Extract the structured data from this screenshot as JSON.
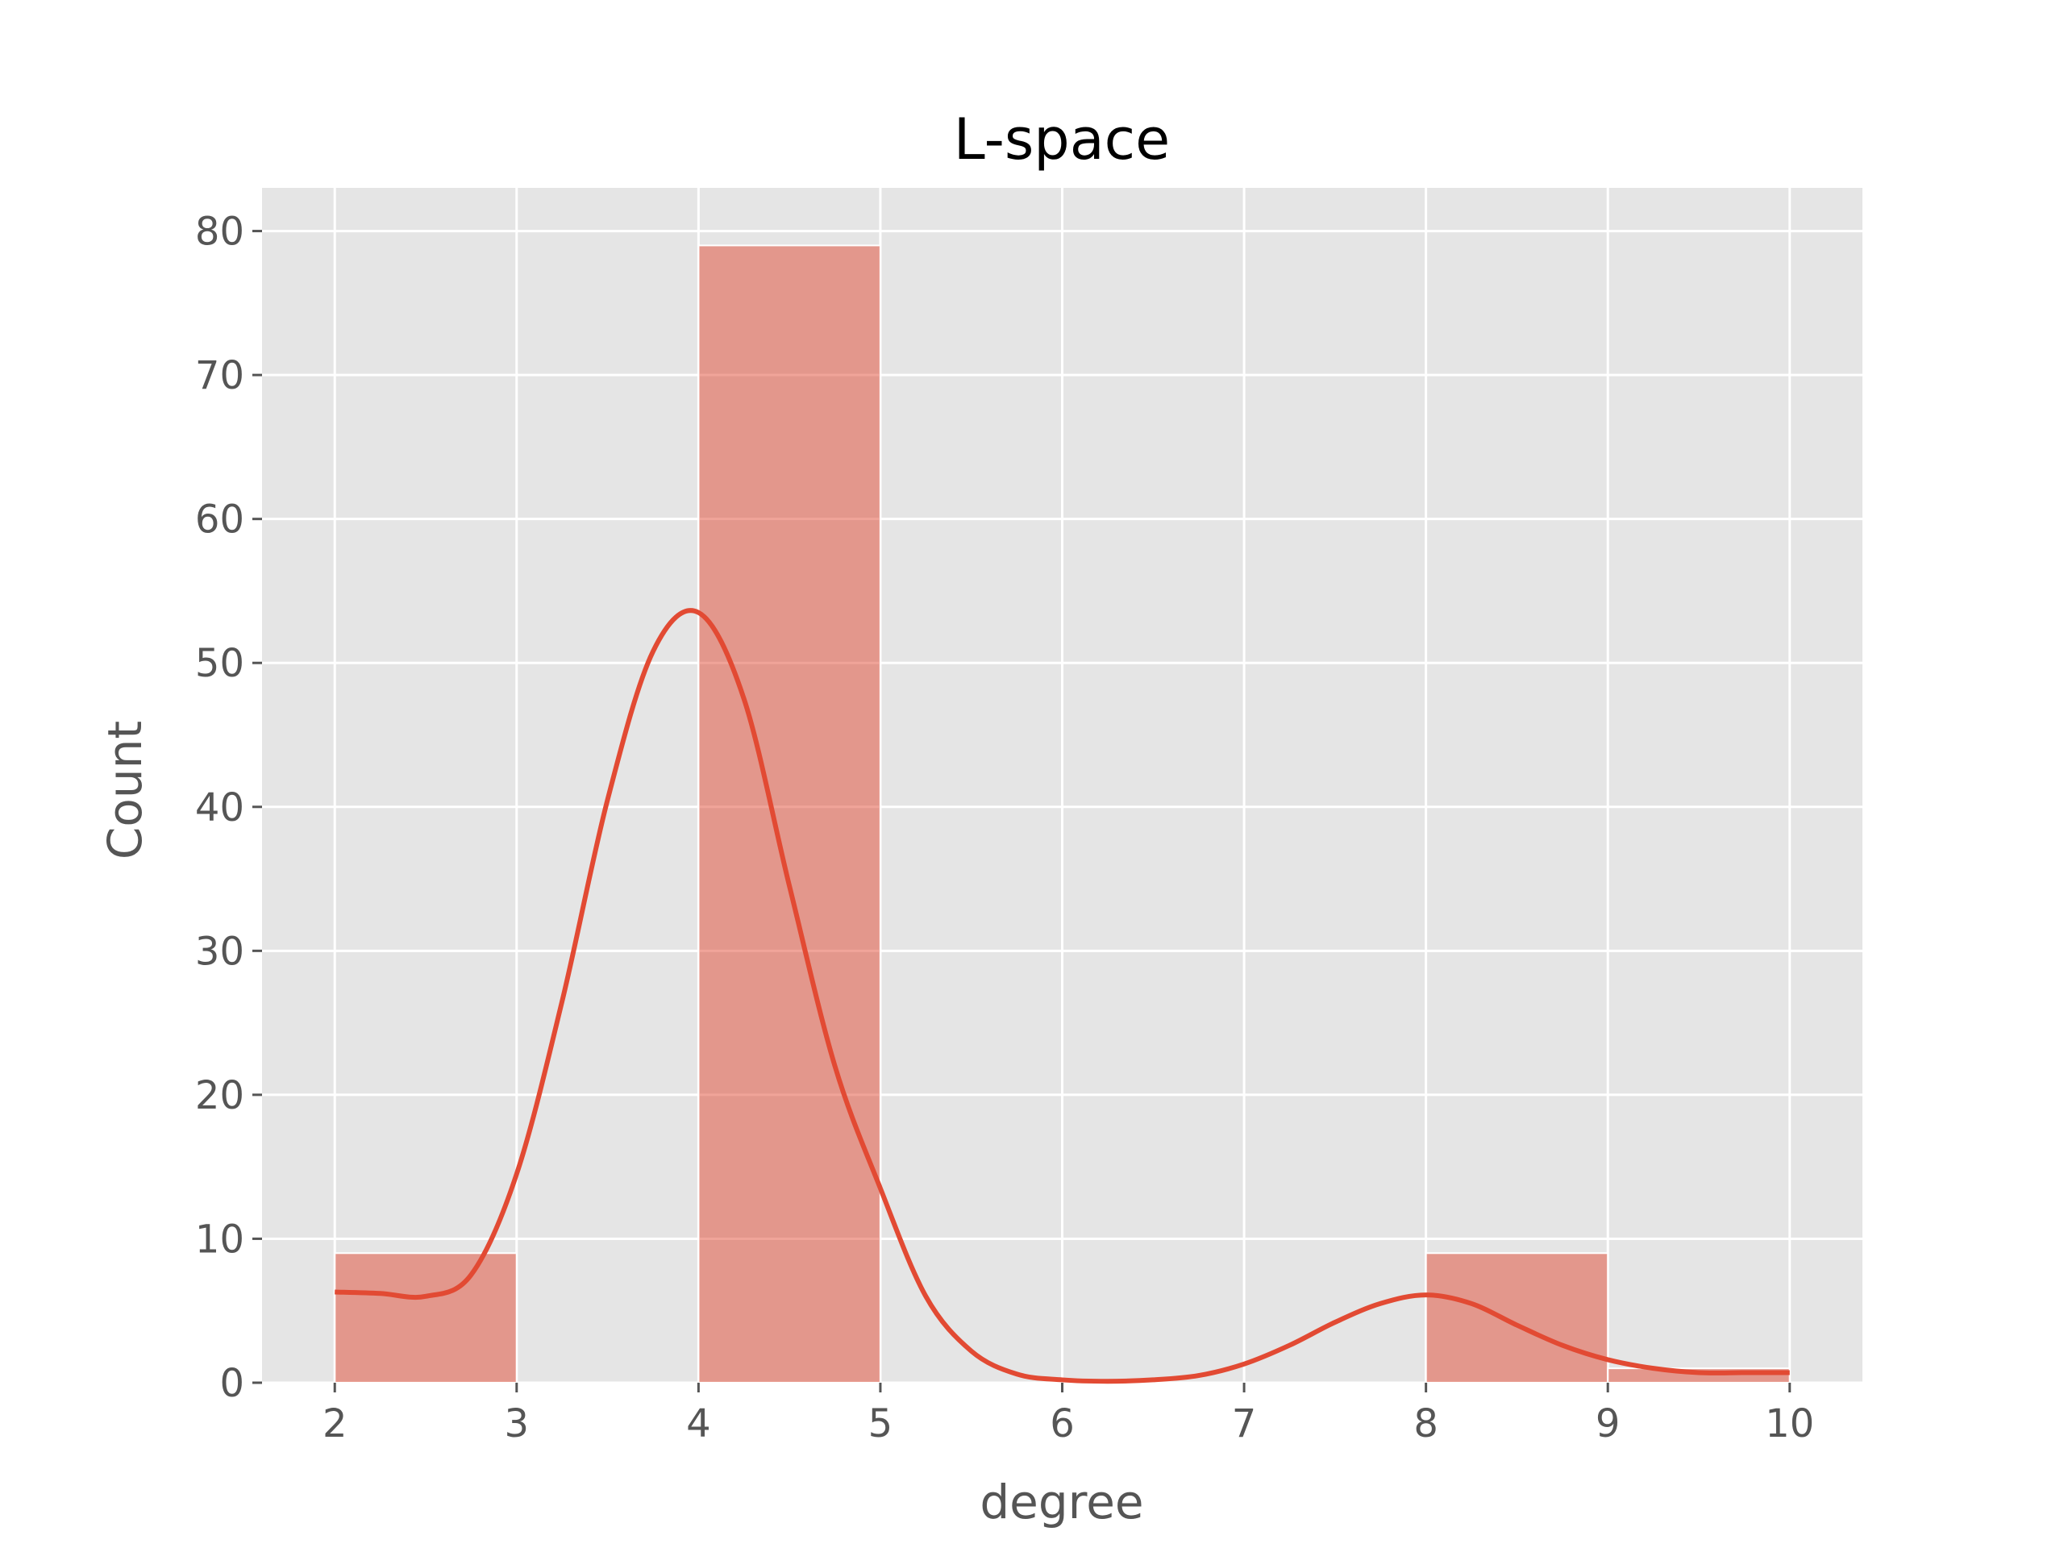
{
  "chart_data": {
    "type": "bar",
    "title": "L-space",
    "xlabel": "degree",
    "ylabel": "Count",
    "xlim": [
      1.6,
      10.4
    ],
    "ylim": [
      0,
      83
    ],
    "xticks": [
      "2",
      "3",
      "4",
      "5",
      "6",
      "7",
      "8",
      "9",
      "10"
    ],
    "yticks": [
      "0",
      "10",
      "20",
      "30",
      "40",
      "50",
      "60",
      "70",
      "80"
    ],
    "grid": true,
    "background": "#E5E5E5",
    "bar_color": "#E24A33",
    "bar_opacity": 0.5,
    "line_color": "#E24A33",
    "bins": [
      {
        "x0": 2,
        "x1": 3,
        "count": 9
      },
      {
        "x0": 3,
        "x1": 4,
        "count": 0
      },
      {
        "x0": 4,
        "x1": 5,
        "count": 79
      },
      {
        "x0": 5,
        "x1": 6,
        "count": 0
      },
      {
        "x0": 6,
        "x1": 7,
        "count": 0
      },
      {
        "x0": 7,
        "x1": 8,
        "count": 0
      },
      {
        "x0": 8,
        "x1": 9,
        "count": 9
      },
      {
        "x0": 9,
        "x1": 10,
        "count": 1
      }
    ],
    "kde": {
      "x": [
        2.0,
        2.25,
        2.5,
        2.75,
        3.0,
        3.25,
        3.5,
        3.75,
        4.0,
        4.25,
        4.5,
        4.75,
        5.0,
        5.25,
        5.5,
        5.75,
        6.0,
        6.25,
        6.5,
        6.75,
        7.0,
        7.25,
        7.5,
        7.75,
        8.0,
        8.25,
        8.5,
        8.75,
        9.0,
        9.25,
        9.5,
        9.75,
        10.0
      ],
      "y": [
        6.3,
        6.2,
        6.0,
        7.5,
        14.5,
        26.5,
        40.5,
        50.8,
        53.5,
        47.5,
        34.5,
        22.0,
        13.5,
        6.0,
        2.2,
        0.6,
        0.2,
        0.1,
        0.2,
        0.5,
        1.3,
        2.6,
        4.2,
        5.5,
        6.1,
        5.5,
        4.0,
        2.6,
        1.6,
        1.0,
        0.7,
        0.7,
        0.7
      ]
    }
  }
}
